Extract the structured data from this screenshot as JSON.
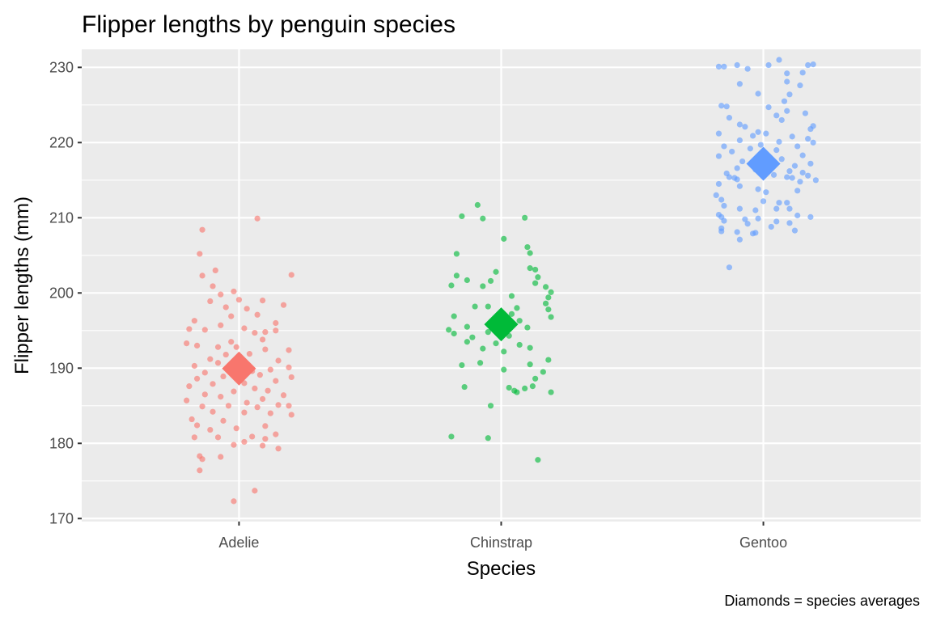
{
  "chart_data": {
    "type": "scatter",
    "title": "Flipper lengths by penguin species",
    "xlabel": "Species",
    "ylabel": "Flipper lengths (mm)",
    "caption": "Diamonds = species averages",
    "categories": [
      "Adelie",
      "Chinstrap",
      "Gentoo"
    ],
    "ylim": [
      169.6,
      232.4
    ],
    "yticks": [
      170,
      180,
      190,
      200,
      210,
      220,
      230
    ],
    "grid": true,
    "legend": "none",
    "series": [
      {
        "category": "Adelie",
        "color": "#F8766D",
        "mean": 189.95,
        "points": [
          {
            "dx": -0.14,
            "y": 208.4
          },
          {
            "dx": -0.15,
            "y": 205.2
          },
          {
            "dx": 0.07,
            "y": 209.9
          },
          {
            "dx": -0.09,
            "y": 203.0
          },
          {
            "dx": -0.14,
            "y": 202.3
          },
          {
            "dx": 0.2,
            "y": 202.4
          },
          {
            "dx": -0.1,
            "y": 200.9
          },
          {
            "dx": -0.02,
            "y": 200.2
          },
          {
            "dx": -0.07,
            "y": 199.8
          },
          {
            "dx": 0.0,
            "y": 199.1
          },
          {
            "dx": -0.11,
            "y": 198.9
          },
          {
            "dx": 0.09,
            "y": 199.0
          },
          {
            "dx": 0.17,
            "y": 198.4
          },
          {
            "dx": -0.05,
            "y": 198.1
          },
          {
            "dx": 0.03,
            "y": 197.9
          },
          {
            "dx": 0.07,
            "y": 197.1
          },
          {
            "dx": -0.03,
            "y": 196.9
          },
          {
            "dx": -0.17,
            "y": 196.3
          },
          {
            "dx": 0.14,
            "y": 196.0
          },
          {
            "dx": -0.19,
            "y": 195.2
          },
          {
            "dx": -0.07,
            "y": 195.7
          },
          {
            "dx": 0.02,
            "y": 195.3
          },
          {
            "dx": 0.06,
            "y": 194.7
          },
          {
            "dx": 0.1,
            "y": 194.8
          },
          {
            "dx": -0.13,
            "y": 195.1
          },
          {
            "dx": 0.14,
            "y": 195.0
          },
          {
            "dx": -0.2,
            "y": 193.3
          },
          {
            "dx": -0.03,
            "y": 193.5
          },
          {
            "dx": 0.09,
            "y": 193.8
          },
          {
            "dx": -0.08,
            "y": 192.8
          },
          {
            "dx": 0.19,
            "y": 192.4
          },
          {
            "dx": -0.01,
            "y": 192.8
          },
          {
            "dx": 0.1,
            "y": 192.5
          },
          {
            "dx": -0.16,
            "y": 193.0
          },
          {
            "dx": -0.05,
            "y": 191.8
          },
          {
            "dx": 0.04,
            "y": 191.9
          },
          {
            "dx": -0.11,
            "y": 191.2
          },
          {
            "dx": 0.15,
            "y": 191.0
          },
          {
            "dx": -0.08,
            "y": 190.7
          },
          {
            "dx": 0.0,
            "y": 190.4
          },
          {
            "dx": -0.17,
            "y": 190.3
          },
          {
            "dx": 0.19,
            "y": 190.1
          },
          {
            "dx": -0.04,
            "y": 190.0
          },
          {
            "dx": 0.12,
            "y": 189.8
          },
          {
            "dx": 0.05,
            "y": 189.6
          },
          {
            "dx": -0.13,
            "y": 189.4
          },
          {
            "dx": -0.06,
            "y": 188.9
          },
          {
            "dx": 0.08,
            "y": 189.1
          },
          {
            "dx": -0.16,
            "y": 188.6
          },
          {
            "dx": 0.2,
            "y": 188.8
          },
          {
            "dx": 0.02,
            "y": 188.0
          },
          {
            "dx": -0.1,
            "y": 187.9
          },
          {
            "dx": 0.14,
            "y": 188.3
          },
          {
            "dx": -0.19,
            "y": 187.6
          },
          {
            "dx": 0.06,
            "y": 187.3
          },
          {
            "dx": 0.11,
            "y": 187.0
          },
          {
            "dx": -0.02,
            "y": 186.9
          },
          {
            "dx": -0.13,
            "y": 186.5
          },
          {
            "dx": 0.17,
            "y": 186.4
          },
          {
            "dx": -0.07,
            "y": 186.2
          },
          {
            "dx": 0.09,
            "y": 185.9
          },
          {
            "dx": -0.2,
            "y": 185.7
          },
          {
            "dx": 0.03,
            "y": 185.4
          },
          {
            "dx": 0.15,
            "y": 185.1
          },
          {
            "dx": -0.04,
            "y": 185.0
          },
          {
            "dx": 0.19,
            "y": 185.0
          },
          {
            "dx": -0.14,
            "y": 184.9
          },
          {
            "dx": 0.07,
            "y": 184.8
          },
          {
            "dx": -0.1,
            "y": 184.2
          },
          {
            "dx": 0.12,
            "y": 184.0
          },
          {
            "dx": 0.02,
            "y": 184.1
          },
          {
            "dx": -0.18,
            "y": 183.2
          },
          {
            "dx": 0.2,
            "y": 183.8
          },
          {
            "dx": -0.06,
            "y": 183.0
          },
          {
            "dx": -0.16,
            "y": 182.4
          },
          {
            "dx": 0.1,
            "y": 182.3
          },
          {
            "dx": -0.01,
            "y": 182.0
          },
          {
            "dx": -0.11,
            "y": 181.8
          },
          {
            "dx": 0.14,
            "y": 181.2
          },
          {
            "dx": -0.17,
            "y": 180.8
          },
          {
            "dx": -0.08,
            "y": 180.8
          },
          {
            "dx": 0.05,
            "y": 180.9
          },
          {
            "dx": 0.1,
            "y": 180.6
          },
          {
            "dx": 0.02,
            "y": 180.2
          },
          {
            "dx": -0.02,
            "y": 179.8
          },
          {
            "dx": 0.09,
            "y": 179.7
          },
          {
            "dx": 0.15,
            "y": 179.3
          },
          {
            "dx": -0.15,
            "y": 178.3
          },
          {
            "dx": -0.07,
            "y": 178.2
          },
          {
            "dx": -0.14,
            "y": 177.9
          },
          {
            "dx": -0.15,
            "y": 176.4
          },
          {
            "dx": 0.06,
            "y": 173.7
          },
          {
            "dx": -0.02,
            "y": 172.3
          }
        ]
      },
      {
        "category": "Chinstrap",
        "color": "#00BA38",
        "mean": 195.82,
        "points": [
          {
            "dx": -0.09,
            "y": 211.7
          },
          {
            "dx": -0.15,
            "y": 210.2
          },
          {
            "dx": -0.07,
            "y": 209.9
          },
          {
            "dx": 0.09,
            "y": 210.0
          },
          {
            "dx": 0.01,
            "y": 207.2
          },
          {
            "dx": 0.1,
            "y": 206.1
          },
          {
            "dx": 0.11,
            "y": 205.3
          },
          {
            "dx": -0.17,
            "y": 205.2
          },
          {
            "dx": 0.11,
            "y": 203.3
          },
          {
            "dx": 0.13,
            "y": 203.1
          },
          {
            "dx": -0.02,
            "y": 202.8
          },
          {
            "dx": -0.17,
            "y": 202.3
          },
          {
            "dx": 0.14,
            "y": 202.1
          },
          {
            "dx": -0.13,
            "y": 201.7
          },
          {
            "dx": -0.04,
            "y": 201.6
          },
          {
            "dx": -0.19,
            "y": 201.0
          },
          {
            "dx": 0.13,
            "y": 201.3
          },
          {
            "dx": -0.07,
            "y": 200.9
          },
          {
            "dx": 0.17,
            "y": 200.8
          },
          {
            "dx": 0.19,
            "y": 200.1
          },
          {
            "dx": 0.04,
            "y": 199.6
          },
          {
            "dx": 0.18,
            "y": 199.4
          },
          {
            "dx": 0.17,
            "y": 198.6
          },
          {
            "dx": -0.1,
            "y": 198.2
          },
          {
            "dx": -0.05,
            "y": 198.2
          },
          {
            "dx": 0.06,
            "y": 198.0
          },
          {
            "dx": 0.18,
            "y": 197.8
          },
          {
            "dx": 0.04,
            "y": 197.2
          },
          {
            "dx": -0.18,
            "y": 196.9
          },
          {
            "dx": 0.19,
            "y": 196.8
          },
          {
            "dx": -0.02,
            "y": 196.4
          },
          {
            "dx": 0.07,
            "y": 196.3
          },
          {
            "dx": -0.13,
            "y": 195.5
          },
          {
            "dx": 0.1,
            "y": 195.4
          },
          {
            "dx": -0.2,
            "y": 195.1
          },
          {
            "dx": -0.05,
            "y": 194.8
          },
          {
            "dx": -0.18,
            "y": 194.6
          },
          {
            "dx": 0.03,
            "y": 194.3
          },
          {
            "dx": -0.11,
            "y": 194.1
          },
          {
            "dx": -0.13,
            "y": 193.5
          },
          {
            "dx": -0.02,
            "y": 193.3
          },
          {
            "dx": 0.07,
            "y": 193.1
          },
          {
            "dx": 0.11,
            "y": 192.7
          },
          {
            "dx": -0.07,
            "y": 192.6
          },
          {
            "dx": 0.01,
            "y": 192.2
          },
          {
            "dx": 0.18,
            "y": 191.1
          },
          {
            "dx": -0.08,
            "y": 190.7
          },
          {
            "dx": 0.11,
            "y": 190.5
          },
          {
            "dx": -0.15,
            "y": 190.4
          },
          {
            "dx": 0.16,
            "y": 189.5
          },
          {
            "dx": 0.01,
            "y": 189.8
          },
          {
            "dx": 0.13,
            "y": 188.6
          },
          {
            "dx": -0.14,
            "y": 187.5
          },
          {
            "dx": 0.03,
            "y": 187.4
          },
          {
            "dx": 0.09,
            "y": 187.3
          },
          {
            "dx": 0.05,
            "y": 187.0
          },
          {
            "dx": 0.12,
            "y": 187.6
          },
          {
            "dx": 0.06,
            "y": 186.8
          },
          {
            "dx": 0.19,
            "y": 186.8
          },
          {
            "dx": -0.04,
            "y": 185.0
          },
          {
            "dx": -0.19,
            "y": 180.9
          },
          {
            "dx": -0.05,
            "y": 180.7
          },
          {
            "dx": 0.14,
            "y": 177.8
          }
        ]
      },
      {
        "category": "Gentoo",
        "color": "#619CFF",
        "mean": 217.19,
        "points": [
          {
            "dx": 0.06,
            "y": 231.0
          },
          {
            "dx": -0.17,
            "y": 230.1
          },
          {
            "dx": -0.15,
            "y": 230.1
          },
          {
            "dx": -0.1,
            "y": 230.3
          },
          {
            "dx": 0.17,
            "y": 230.3
          },
          {
            "dx": 0.19,
            "y": 230.4
          },
          {
            "dx": 0.02,
            "y": 230.3
          },
          {
            "dx": -0.06,
            "y": 229.8
          },
          {
            "dx": 0.09,
            "y": 229.2
          },
          {
            "dx": 0.15,
            "y": 229.3
          },
          {
            "dx": -0.09,
            "y": 227.8
          },
          {
            "dx": 0.09,
            "y": 228.1
          },
          {
            "dx": 0.14,
            "y": 227.6
          },
          {
            "dx": -0.02,
            "y": 226.5
          },
          {
            "dx": 0.1,
            "y": 226.4
          },
          {
            "dx": 0.08,
            "y": 225.5
          },
          {
            "dx": -0.16,
            "y": 224.9
          },
          {
            "dx": -0.14,
            "y": 224.8
          },
          {
            "dx": 0.02,
            "y": 224.7
          },
          {
            "dx": 0.09,
            "y": 224.2
          },
          {
            "dx": 0.05,
            "y": 223.6
          },
          {
            "dx": 0.16,
            "y": 223.9
          },
          {
            "dx": -0.13,
            "y": 223.3
          },
          {
            "dx": 0.07,
            "y": 223.0
          },
          {
            "dx": -0.09,
            "y": 222.4
          },
          {
            "dx": -0.07,
            "y": 222.1
          },
          {
            "dx": 0.19,
            "y": 222.2
          },
          {
            "dx": 0.18,
            "y": 221.8
          },
          {
            "dx": -0.02,
            "y": 221.4
          },
          {
            "dx": 0.01,
            "y": 221.2
          },
          {
            "dx": -0.17,
            "y": 221.2
          },
          {
            "dx": -0.04,
            "y": 220.9
          },
          {
            "dx": 0.11,
            "y": 220.8
          },
          {
            "dx": -0.09,
            "y": 220.3
          },
          {
            "dx": 0.17,
            "y": 220.5
          },
          {
            "dx": 0.06,
            "y": 220.1
          },
          {
            "dx": 0.19,
            "y": 220.0
          },
          {
            "dx": -0.01,
            "y": 219.7
          },
          {
            "dx": -0.15,
            "y": 219.5
          },
          {
            "dx": 0.13,
            "y": 219.5
          },
          {
            "dx": -0.05,
            "y": 219.2
          },
          {
            "dx": 0.05,
            "y": 219.0
          },
          {
            "dx": 0.01,
            "y": 218.5
          },
          {
            "dx": -0.12,
            "y": 218.8
          },
          {
            "dx": 0.15,
            "y": 218.3
          },
          {
            "dx": -0.17,
            "y": 218.2
          },
          {
            "dx": 0.07,
            "y": 217.8
          },
          {
            "dx": -0.08,
            "y": 217.5
          },
          {
            "dx": 0.18,
            "y": 217.2
          },
          {
            "dx": 0.12,
            "y": 216.9
          },
          {
            "dx": -0.1,
            "y": 216.6
          },
          {
            "dx": -0.03,
            "y": 216.4
          },
          {
            "dx": 0.1,
            "y": 216.2
          },
          {
            "dx": 0.15,
            "y": 216.0
          },
          {
            "dx": -0.14,
            "y": 215.9
          },
          {
            "dx": 0.04,
            "y": 215.7
          },
          {
            "dx": 0.17,
            "y": 215.6
          },
          {
            "dx": -0.13,
            "y": 215.4
          },
          {
            "dx": -0.11,
            "y": 215.3
          },
          {
            "dx": -0.1,
            "y": 215.1
          },
          {
            "dx": 0.09,
            "y": 215.4
          },
          {
            "dx": 0.11,
            "y": 215.3
          },
          {
            "dx": 0.2,
            "y": 215.0
          },
          {
            "dx": 0.14,
            "y": 214.8
          },
          {
            "dx": -0.17,
            "y": 214.5
          },
          {
            "dx": -0.09,
            "y": 214.2
          },
          {
            "dx": -0.02,
            "y": 213.8
          },
          {
            "dx": 0.01,
            "y": 213.4
          },
          {
            "dx": 0.13,
            "y": 213.6
          },
          {
            "dx": -0.18,
            "y": 213.0
          },
          {
            "dx": -0.16,
            "y": 212.4
          },
          {
            "dx": 0.0,
            "y": 212.2
          },
          {
            "dx": 0.06,
            "y": 212.0
          },
          {
            "dx": 0.09,
            "y": 212.0
          },
          {
            "dx": -0.15,
            "y": 211.6
          },
          {
            "dx": -0.09,
            "y": 211.2
          },
          {
            "dx": -0.03,
            "y": 211.0
          },
          {
            "dx": 0.05,
            "y": 211.2
          },
          {
            "dx": 0.1,
            "y": 211.2
          },
          {
            "dx": -0.17,
            "y": 210.4
          },
          {
            "dx": -0.16,
            "y": 210.1
          },
          {
            "dx": 0.13,
            "y": 210.3
          },
          {
            "dx": 0.18,
            "y": 210.1
          },
          {
            "dx": -0.07,
            "y": 209.8
          },
          {
            "dx": -0.02,
            "y": 209.9
          },
          {
            "dx": -0.15,
            "y": 209.6
          },
          {
            "dx": 0.05,
            "y": 209.5
          },
          {
            "dx": 0.1,
            "y": 209.3
          },
          {
            "dx": -0.06,
            "y": 209.2
          },
          {
            "dx": 0.03,
            "y": 208.8
          },
          {
            "dx": -0.16,
            "y": 208.6
          },
          {
            "dx": -0.16,
            "y": 208.2
          },
          {
            "dx": -0.1,
            "y": 208.1
          },
          {
            "dx": -0.03,
            "y": 208.0
          },
          {
            "dx": 0.12,
            "y": 208.3
          },
          {
            "dx": -0.04,
            "y": 207.9
          },
          {
            "dx": -0.09,
            "y": 207.1
          },
          {
            "dx": -0.13,
            "y": 203.4
          }
        ]
      }
    ]
  }
}
